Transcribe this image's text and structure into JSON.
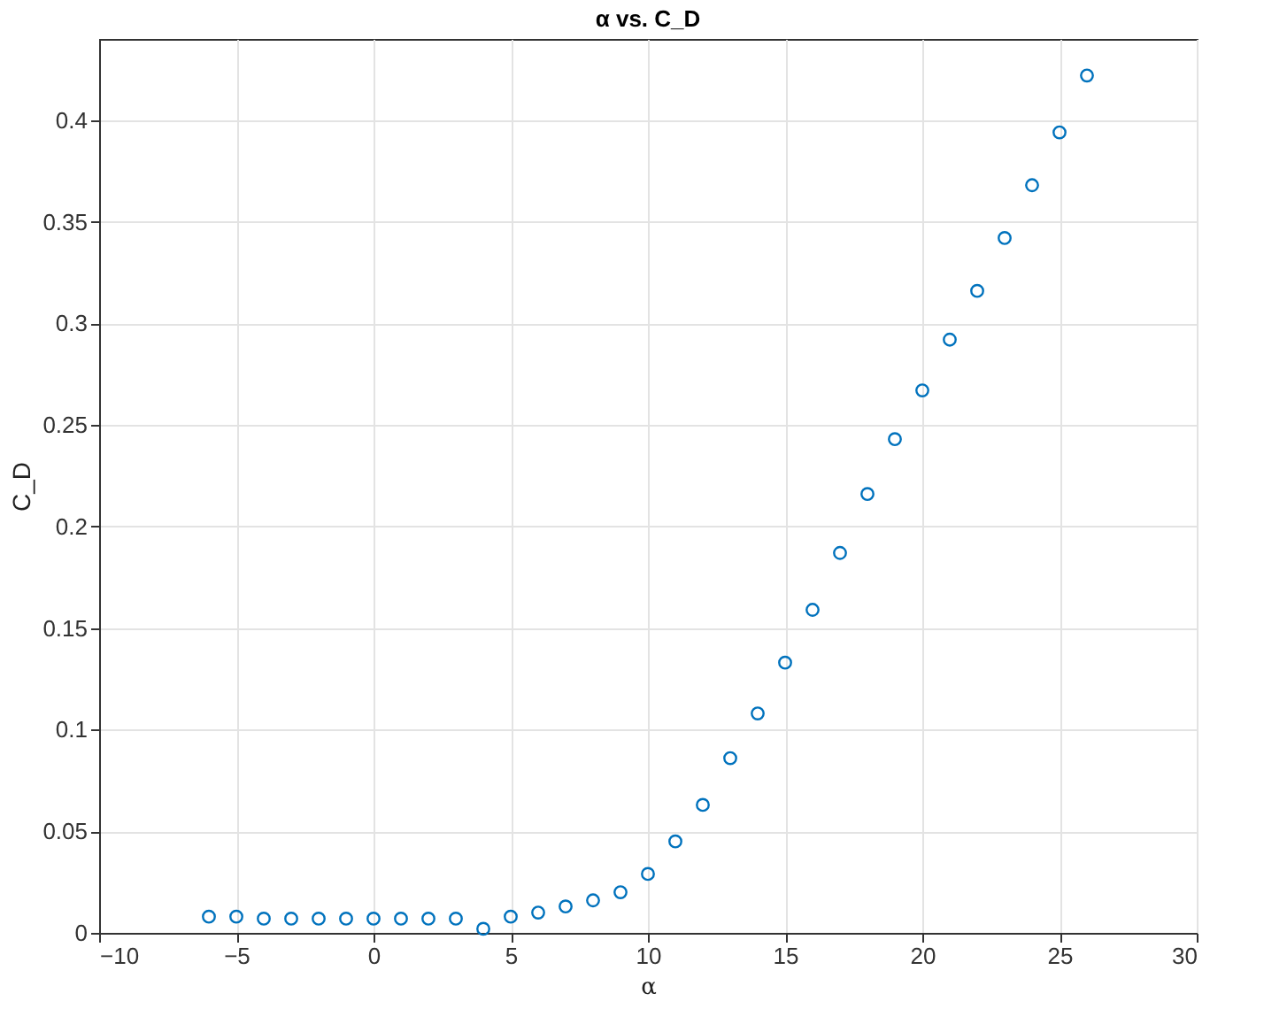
{
  "chart_data": {
    "type": "scatter",
    "title": "α vs. C_D",
    "xlabel": "α",
    "ylabel": "C_D",
    "x": [
      -6,
      -5,
      -4,
      -3,
      -2,
      -1,
      0,
      1,
      2,
      3,
      4,
      5,
      6,
      7,
      8,
      9,
      10,
      11,
      12,
      13,
      14,
      15,
      16,
      17,
      18,
      19,
      20,
      21,
      22,
      23,
      24,
      25,
      26
    ],
    "series": [
      {
        "color": "#0072bd",
        "values": [
          0.008,
          0.008,
          0.007,
          0.007,
          0.007,
          0.007,
          0.007,
          0.007,
          0.007,
          0.007,
          0.002,
          0.008,
          0.01,
          0.013,
          0.016,
          0.02,
          0.029,
          0.045,
          0.063,
          0.086,
          0.108,
          0.133,
          0.159,
          0.187,
          0.216,
          0.243,
          0.267,
          0.292,
          0.316,
          0.342,
          0.368,
          0.394,
          0.422
        ]
      }
    ],
    "xlim": [
      -10,
      30
    ],
    "xticks": [
      -10,
      -5,
      0,
      5,
      10,
      15,
      20,
      25,
      30
    ],
    "ylim": [
      0,
      0.44
    ],
    "yticks": [
      0,
      0.05,
      0.1,
      0.15,
      0.2,
      0.25,
      0.3,
      0.35,
      0.4
    ],
    "grid": true,
    "marker": "circle"
  }
}
